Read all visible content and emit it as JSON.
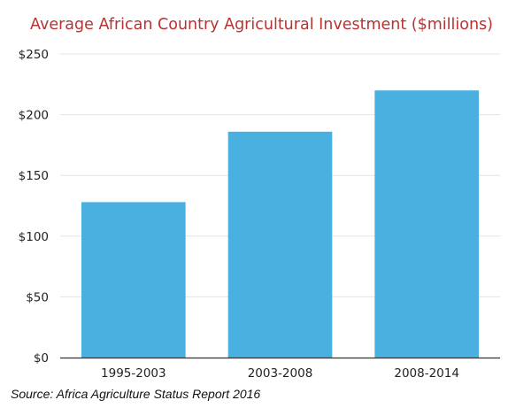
{
  "chart_data": {
    "type": "bar",
    "title": "Average African Country Agricultural Investment ($millions)",
    "categories": [
      "1995-2003",
      "2003-2008",
      "2008-2014"
    ],
    "values": [
      128,
      186,
      220
    ],
    "ylim": [
      0,
      250
    ],
    "yticks": [
      0,
      50,
      100,
      150,
      200,
      250
    ],
    "ytick_labels": [
      "$0",
      "$50",
      "$100",
      "$150",
      "$200",
      "$250"
    ],
    "xlabel": "",
    "ylabel": "",
    "grid": true,
    "legend": "none",
    "bar_color": "#4ab0df"
  },
  "source": "Source: Africa Agriculture Status Report 2016"
}
